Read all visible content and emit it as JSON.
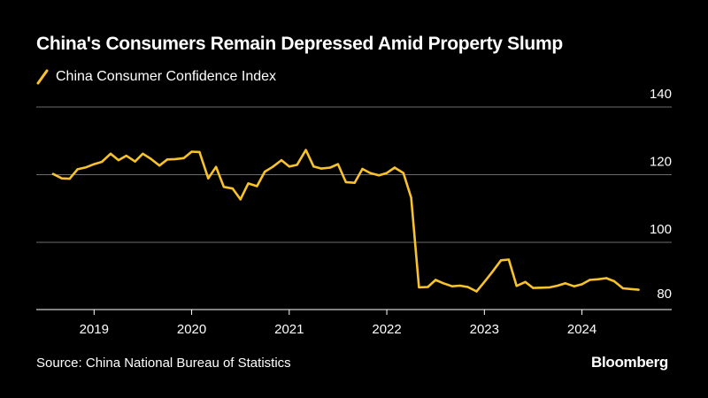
{
  "title": "China's Consumers Remain Depressed Amid Property Slump",
  "source": "Source: China National Bureau of Statistics",
  "brand": "Bloomberg",
  "colors": {
    "background": "#000000",
    "line": "#f7c22b",
    "grid": "#6b6b6b",
    "text": "#ffffff"
  },
  "chart_data": {
    "type": "line",
    "title": "China's Consumers Remain Depressed Amid Property Slump",
    "xlabel": "",
    "ylabel": "",
    "ylim": [
      80,
      140
    ],
    "yticks": [
      80,
      100,
      120,
      140
    ],
    "xlim": [
      2018.58,
      2024.92
    ],
    "xticks": [
      2019,
      2020,
      2021,
      2022,
      2023,
      2024
    ],
    "grid": true,
    "legend_position": "top-left",
    "series": [
      {
        "name": "China Consumer Confidence Index",
        "x": [
          2018.58,
          2018.67,
          2018.75,
          2018.83,
          2018.92,
          2019.0,
          2019.08,
          2019.17,
          2019.25,
          2019.33,
          2019.42,
          2019.5,
          2019.58,
          2019.67,
          2019.75,
          2019.83,
          2019.92,
          2020.0,
          2020.08,
          2020.17,
          2020.25,
          2020.33,
          2020.42,
          2020.5,
          2020.58,
          2020.67,
          2020.75,
          2020.83,
          2020.92,
          2021.0,
          2021.08,
          2021.17,
          2021.25,
          2021.33,
          2021.42,
          2021.5,
          2021.58,
          2021.67,
          2021.75,
          2021.83,
          2021.92,
          2022.0,
          2022.08,
          2022.17,
          2022.25,
          2022.33,
          2022.42,
          2022.5,
          2022.58,
          2022.67,
          2022.75,
          2022.83,
          2022.92,
          2023.0,
          2023.08,
          2023.17,
          2023.25,
          2023.33,
          2023.42,
          2023.5,
          2023.58,
          2023.67,
          2023.75,
          2023.83,
          2023.92,
          2024.0,
          2024.08,
          2024.17,
          2024.25,
          2024.33,
          2024.42,
          2024.5,
          2024.58
        ],
        "values": [
          120.2,
          118.9,
          118.8,
          121.6,
          122.2,
          123.1,
          123.8,
          126.2,
          124.3,
          125.6,
          123.9,
          126.2,
          124.7,
          122.7,
          124.5,
          124.6,
          124.9,
          126.8,
          126.7,
          118.9,
          122.3,
          116.4,
          115.9,
          112.7,
          117.4,
          116.6,
          120.9,
          122.3,
          124.3,
          122.4,
          122.9,
          127.3,
          122.4,
          121.8,
          122.1,
          123.1,
          117.8,
          117.6,
          121.7,
          120.5,
          119.8,
          120.5,
          122.1,
          120.5,
          113.2,
          86.7,
          86.8,
          88.9,
          87.9,
          87.0,
          87.2,
          86.8,
          85.5,
          88.3,
          91.2,
          94.7,
          94.9,
          87.1,
          88.3,
          86.5,
          86.6,
          86.7,
          87.2,
          87.9,
          87.0,
          87.6,
          88.9,
          89.1,
          89.4,
          88.5,
          86.4,
          86.2,
          86.0
        ]
      }
    ]
  }
}
